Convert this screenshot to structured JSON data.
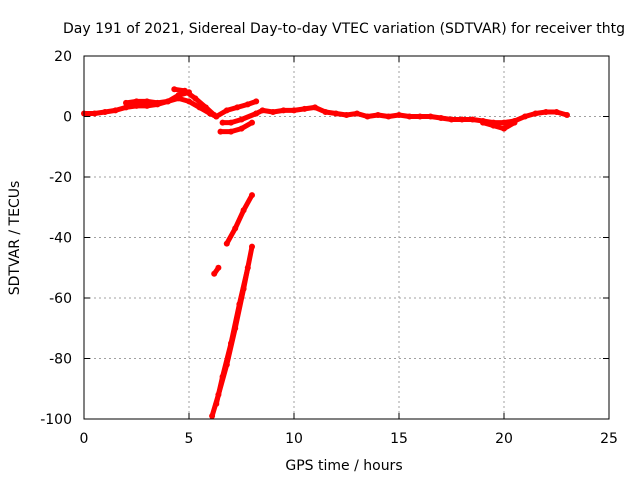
{
  "chart_data": {
    "type": "scatter",
    "title": "Day 191 of 2021, Sidereal Day-to-day VTEC variation (SDTVAR) for receiver thtg",
    "xlabel": "GPS time / hours",
    "ylabel": "SDTVAR / TECUs",
    "xlim": [
      0,
      25
    ],
    "ylim": [
      -100,
      20
    ],
    "x_ticks": [
      0,
      5,
      10,
      15,
      20,
      25
    ],
    "y_ticks": [
      -100,
      -80,
      -60,
      -40,
      -20,
      0,
      20
    ],
    "grid": true,
    "legend": "none",
    "series_color": "#ff0000",
    "series": [
      {
        "x": [
          0,
          0.5,
          1,
          1.5,
          2,
          2.5,
          3,
          3.5,
          4,
          4.5,
          5,
          5.5,
          6,
          6.3
        ],
        "y": [
          1,
          1,
          1.5,
          2,
          3,
          3.5,
          3.5,
          4,
          5,
          6,
          5,
          3,
          1,
          0
        ]
      },
      {
        "x": [
          2,
          2.5,
          3,
          3.5,
          4,
          4.5,
          5
        ],
        "y": [
          4.5,
          5,
          5,
          4.5,
          5,
          7,
          8
        ]
      },
      {
        "x": [
          4.3,
          4.8,
          5.3,
          5.8,
          6.2
        ],
        "y": [
          9,
          8.5,
          6,
          3,
          0.5
        ]
      },
      {
        "x": [
          6.3,
          6.8,
          7.3,
          7.8,
          8.2
        ],
        "y": [
          0,
          2,
          3,
          4,
          5
        ]
      },
      {
        "x": [
          6.5,
          7,
          7.5,
          8
        ],
        "y": [
          -5,
          -5,
          -4,
          -2
        ]
      },
      {
        "x": [
          6.6,
          7,
          7.5,
          8.2
        ],
        "y": [
          -2,
          -2,
          -1,
          1
        ]
      },
      {
        "x": [
          8.2,
          8.5,
          9,
          9.5,
          10,
          10.5,
          11,
          11.5,
          12,
          12.5,
          13,
          13.5,
          14,
          14.5,
          15,
          15.5,
          16,
          16.5,
          17,
          17.5,
          18,
          18.5,
          19,
          19.5,
          20,
          20.5,
          21,
          21.5,
          22,
          22.5,
          23
        ],
        "y": [
          1,
          2,
          1.5,
          2,
          2,
          2.5,
          3,
          1.5,
          1,
          0.5,
          1,
          0,
          0.5,
          0,
          0.5,
          0,
          0,
          0,
          -0.5,
          -1,
          -1,
          -1,
          -1.5,
          -2,
          -2,
          -1.5,
          0,
          1,
          1.5,
          1.5,
          0.5
        ]
      },
      {
        "x": [
          19,
          19.5,
          20,
          20.5
        ],
        "y": [
          -2,
          -3,
          -4,
          -2
        ]
      },
      {
        "x": [
          6.2,
          6.4
        ],
        "y": [
          -52,
          -50
        ]
      },
      {
        "x": [
          6.8,
          7.2,
          7.6,
          8.0
        ],
        "y": [
          -42,
          -37,
          -31,
          -26
        ]
      },
      {
        "x": [
          6.1,
          6.4,
          6.8,
          7.2,
          7.6,
          8.0
        ],
        "y": [
          -99,
          -92,
          -82,
          -70,
          -57,
          -43
        ]
      },
      {
        "x": [
          6.3,
          6.6,
          7.0,
          7.4,
          7.8
        ],
        "y": [
          -95,
          -86,
          -75,
          -62,
          -50
        ]
      }
    ]
  }
}
